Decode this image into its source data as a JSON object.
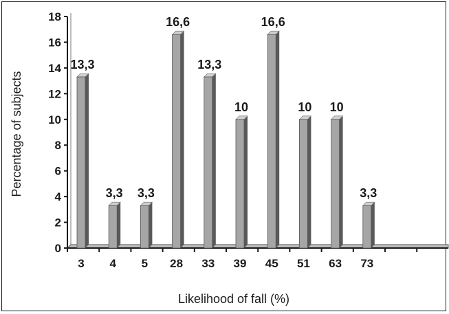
{
  "chart_data": {
    "type": "bar",
    "title": "",
    "xlabel": "Likelihood of fall (%)",
    "ylabel": "Percentage of subjects",
    "ylim": [
      0,
      18
    ],
    "yticks": [
      "0",
      "2",
      "4",
      "6",
      "8",
      "10",
      "12",
      "14",
      "16",
      "18"
    ],
    "categories": [
      "3",
      "4",
      "5",
      "28",
      "33",
      "39",
      "45",
      "51",
      "63",
      "73"
    ],
    "values": [
      13.3,
      3.3,
      3.3,
      16.6,
      13.3,
      10,
      16.6,
      10,
      10,
      3.3
    ],
    "data_labels": [
      "13,3",
      "3,3",
      "3,3",
      "16,6",
      "13,3",
      "10",
      "16,6",
      "10",
      "10",
      "3,3"
    ],
    "grid": false,
    "colors": {
      "bar_front": "#a6a6a6",
      "bar_side": "#595959",
      "bar_top": "#d0d0d0",
      "axis": "#1a1a1a"
    }
  }
}
